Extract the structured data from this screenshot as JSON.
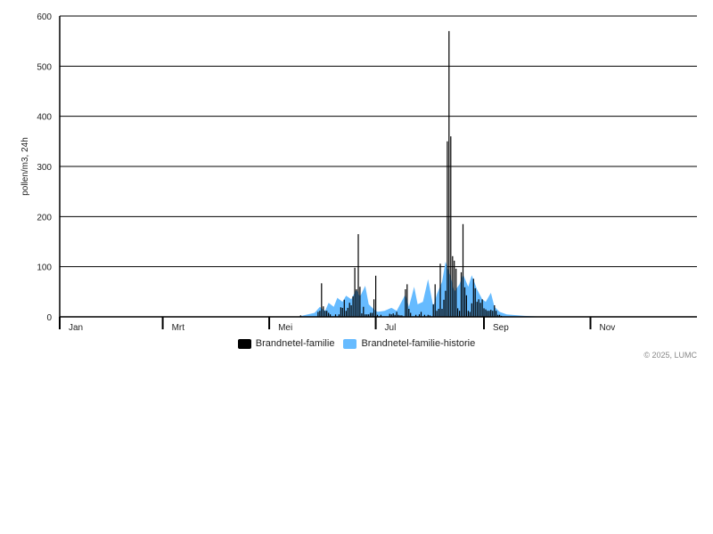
{
  "chart_data": {
    "type": "bar",
    "year": 2025,
    "ylabel": "pollen/m3, 24h",
    "ylim": [
      0,
      600
    ],
    "yticks": [
      "0",
      "100",
      "200",
      "300",
      "400",
      "500",
      "600"
    ],
    "xlim": [
      "2025-01-01",
      "2025-12-31"
    ],
    "xticks": [
      {
        "label": "Jan",
        "date": "2025-01-01"
      },
      {
        "label": "Mrt",
        "date": "2025-03-01"
      },
      {
        "label": "Mei",
        "date": "2025-05-01"
      },
      {
        "label": "Jul",
        "date": "2025-07-01"
      },
      {
        "label": "Sep",
        "date": "2025-09-01"
      },
      {
        "label": "Nov",
        "date": "2025-11-01"
      }
    ],
    "grid": true,
    "legend_position": "bottom",
    "colors": {
      "bars": "#000000",
      "history": "#66bbff"
    },
    "series": [
      {
        "name": "Brandnetel-familie",
        "type": "bar",
        "points": [
          [
            "2025-05-19",
            3
          ],
          [
            "2025-05-29",
            10
          ],
          [
            "2025-05-30",
            12
          ],
          [
            "2025-05-31",
            67
          ],
          [
            "2025-06-01",
            21
          ],
          [
            "2025-06-02",
            12
          ],
          [
            "2025-06-03",
            12
          ],
          [
            "2025-06-04",
            8
          ],
          [
            "2025-06-05",
            5
          ],
          [
            "2025-06-08",
            5
          ],
          [
            "2025-06-10",
            5
          ],
          [
            "2025-06-11",
            19
          ],
          [
            "2025-06-12",
            18
          ],
          [
            "2025-06-13",
            34
          ],
          [
            "2025-06-14",
            12
          ],
          [
            "2025-06-15",
            18
          ],
          [
            "2025-06-16",
            28
          ],
          [
            "2025-06-17",
            23
          ],
          [
            "2025-06-18",
            41
          ],
          [
            "2025-06-19",
            98
          ],
          [
            "2025-06-20",
            55
          ],
          [
            "2025-06-21",
            165
          ],
          [
            "2025-06-22",
            60
          ],
          [
            "2025-06-23",
            7
          ],
          [
            "2025-06-24",
            20
          ],
          [
            "2025-06-25",
            5
          ],
          [
            "2025-06-26",
            5
          ],
          [
            "2025-06-27",
            5
          ],
          [
            "2025-06-28",
            8
          ],
          [
            "2025-06-29",
            8
          ],
          [
            "2025-06-30",
            35
          ],
          [
            "2025-07-01",
            82
          ],
          [
            "2025-07-02",
            4
          ],
          [
            "2025-07-04",
            4
          ],
          [
            "2025-07-09",
            6
          ],
          [
            "2025-07-10",
            5
          ],
          [
            "2025-07-11",
            7
          ],
          [
            "2025-07-12",
            4
          ],
          [
            "2025-07-13",
            10
          ],
          [
            "2025-07-14",
            4
          ],
          [
            "2025-07-15",
            3
          ],
          [
            "2025-07-16",
            3
          ],
          [
            "2025-07-18",
            55
          ],
          [
            "2025-07-19",
            65
          ],
          [
            "2025-07-20",
            16
          ],
          [
            "2025-07-21",
            8
          ],
          [
            "2025-07-24",
            4
          ],
          [
            "2025-07-26",
            5
          ],
          [
            "2025-07-27",
            10
          ],
          [
            "2025-07-29",
            4
          ],
          [
            "2025-07-31",
            4
          ],
          [
            "2025-08-01",
            3
          ],
          [
            "2025-08-03",
            25
          ],
          [
            "2025-08-04",
            65
          ],
          [
            "2025-08-05",
            12
          ],
          [
            "2025-08-06",
            16
          ],
          [
            "2025-08-07",
            106
          ],
          [
            "2025-08-08",
            16
          ],
          [
            "2025-08-09",
            34
          ],
          [
            "2025-08-10",
            52
          ],
          [
            "2025-08-11",
            350
          ],
          [
            "2025-08-12",
            570
          ],
          [
            "2025-08-13",
            360
          ],
          [
            "2025-08-14",
            121
          ],
          [
            "2025-08-15",
            112
          ],
          [
            "2025-08-16",
            96
          ],
          [
            "2025-08-17",
            17
          ],
          [
            "2025-08-18",
            12
          ],
          [
            "2025-08-19",
            89
          ],
          [
            "2025-08-20",
            185
          ],
          [
            "2025-08-21",
            59
          ],
          [
            "2025-08-22",
            43
          ],
          [
            "2025-08-23",
            12
          ],
          [
            "2025-08-24",
            10
          ],
          [
            "2025-08-25",
            27
          ],
          [
            "2025-08-26",
            76
          ],
          [
            "2025-08-27",
            57
          ],
          [
            "2025-08-28",
            30
          ],
          [
            "2025-08-29",
            35
          ],
          [
            "2025-08-30",
            28
          ],
          [
            "2025-08-31",
            35
          ],
          [
            "2025-09-01",
            17
          ],
          [
            "2025-09-02",
            15
          ],
          [
            "2025-09-03",
            12
          ],
          [
            "2025-09-04",
            12
          ],
          [
            "2025-09-05",
            14
          ],
          [
            "2025-09-06",
            12
          ],
          [
            "2025-09-07",
            23
          ],
          [
            "2025-09-08",
            12
          ],
          [
            "2025-09-09",
            4
          ],
          [
            "2025-09-10",
            4
          ],
          [
            "2025-09-11",
            2
          ]
        ]
      },
      {
        "name": "Brandnetel-familie-historie",
        "type": "area",
        "points": [
          [
            "2025-05-17",
            0
          ],
          [
            "2025-05-22",
            4
          ],
          [
            "2025-05-27",
            8
          ],
          [
            "2025-05-30",
            20
          ],
          [
            "2025-06-02",
            12
          ],
          [
            "2025-06-04",
            28
          ],
          [
            "2025-06-07",
            20
          ],
          [
            "2025-06-09",
            38
          ],
          [
            "2025-06-12",
            30
          ],
          [
            "2025-06-14",
            42
          ],
          [
            "2025-06-17",
            35
          ],
          [
            "2025-06-20",
            55
          ],
          [
            "2025-06-22",
            40
          ],
          [
            "2025-06-25",
            62
          ],
          [
            "2025-06-27",
            25
          ],
          [
            "2025-06-30",
            15
          ],
          [
            "2025-07-02",
            10
          ],
          [
            "2025-07-06",
            12
          ],
          [
            "2025-07-10",
            18
          ],
          [
            "2025-07-13",
            12
          ],
          [
            "2025-07-15",
            25
          ],
          [
            "2025-07-18",
            45
          ],
          [
            "2025-07-20",
            20
          ],
          [
            "2025-07-23",
            60
          ],
          [
            "2025-07-25",
            25
          ],
          [
            "2025-07-28",
            30
          ],
          [
            "2025-07-31",
            75
          ],
          [
            "2025-08-03",
            20
          ],
          [
            "2025-08-05",
            45
          ],
          [
            "2025-08-08",
            70
          ],
          [
            "2025-08-10",
            110
          ],
          [
            "2025-08-13",
            80
          ],
          [
            "2025-08-15",
            50
          ],
          [
            "2025-08-18",
            65
          ],
          [
            "2025-08-20",
            85
          ],
          [
            "2025-08-23",
            60
          ],
          [
            "2025-08-25",
            83
          ],
          [
            "2025-08-28",
            55
          ],
          [
            "2025-08-31",
            35
          ],
          [
            "2025-09-02",
            30
          ],
          [
            "2025-09-05",
            48
          ],
          [
            "2025-09-07",
            20
          ],
          [
            "2025-09-10",
            10
          ],
          [
            "2025-09-14",
            5
          ],
          [
            "2025-09-24",
            2
          ],
          [
            "2025-10-07",
            0
          ]
        ]
      }
    ]
  },
  "copyright": "© 2025, LUMC"
}
